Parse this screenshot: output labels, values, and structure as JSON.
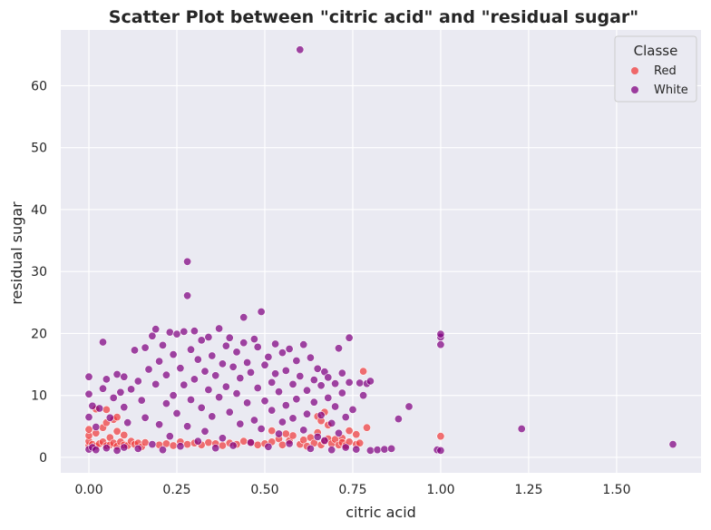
{
  "chart_data": {
    "type": "scatter",
    "title": "Scatter Plot between \"citric acid\" and \"residual sugar\"",
    "xlabel": "citric acid",
    "ylabel": "residual sugar",
    "xlim": [
      -0.08,
      1.74
    ],
    "ylim": [
      -2.5,
      69
    ],
    "xticks": [
      0.0,
      0.25,
      0.5,
      0.75,
      1.0,
      1.25,
      1.5
    ],
    "xtick_labels": [
      "0.00",
      "0.25",
      "0.50",
      "0.75",
      "1.00",
      "1.25",
      "1.50"
    ],
    "yticks": [
      0,
      10,
      20,
      30,
      40,
      50,
      60
    ],
    "ytick_labels": [
      "0",
      "10",
      "20",
      "30",
      "40",
      "50",
      "60"
    ],
    "grid": true,
    "legend": {
      "title": "Classe",
      "placement": "top-right"
    },
    "series": [
      {
        "name": "Red",
        "color": "#f03b3b",
        "points": [
          [
            0.0,
            1.9
          ],
          [
            0.0,
            2.6
          ],
          [
            0.0,
            3.5
          ],
          [
            0.0,
            4.5
          ],
          [
            0.01,
            2.1
          ],
          [
            0.02,
            1.8
          ],
          [
            0.02,
            3.9
          ],
          [
            0.03,
            2.2
          ],
          [
            0.04,
            2.5
          ],
          [
            0.04,
            4.8
          ],
          [
            0.05,
            1.9
          ],
          [
            0.05,
            5.6
          ],
          [
            0.06,
            2.0
          ],
          [
            0.06,
            3.2
          ],
          [
            0.07,
            2.3
          ],
          [
            0.07,
            6.1
          ],
          [
            0.08,
            1.8
          ],
          [
            0.08,
            4.2
          ],
          [
            0.09,
            2.5
          ],
          [
            0.1,
            2.0
          ],
          [
            0.1,
            3.6
          ],
          [
            0.11,
            1.9
          ],
          [
            0.12,
            2.6
          ],
          [
            0.13,
            2.1
          ],
          [
            0.14,
            2.3
          ],
          [
            0.15,
            1.7
          ],
          [
            0.16,
            2.4
          ],
          [
            0.02,
            7.8
          ],
          [
            0.05,
            7.7
          ],
          [
            0.08,
            6.5
          ],
          [
            0.2,
            2.0
          ],
          [
            0.22,
            2.2
          ],
          [
            0.24,
            1.9
          ],
          [
            0.26,
            2.5
          ],
          [
            0.28,
            2.1
          ],
          [
            0.3,
            2.3
          ],
          [
            0.32,
            2.0
          ],
          [
            0.34,
            2.4
          ],
          [
            0.36,
            2.2
          ],
          [
            0.38,
            1.9
          ],
          [
            0.4,
            2.3
          ],
          [
            0.42,
            2.1
          ],
          [
            0.44,
            2.6
          ],
          [
            0.46,
            2.4
          ],
          [
            0.48,
            2.0
          ],
          [
            0.5,
            2.2
          ],
          [
            0.52,
            2.5
          ],
          [
            0.54,
            3.0
          ],
          [
            0.55,
            2.0
          ],
          [
            0.57,
            2.7
          ],
          [
            0.58,
            3.5
          ],
          [
            0.6,
            2.1
          ],
          [
            0.61,
            2.8
          ],
          [
            0.62,
            1.8
          ],
          [
            0.63,
            3.2
          ],
          [
            0.64,
            2.3
          ],
          [
            0.65,
            4.0
          ],
          [
            0.65,
            6.6
          ],
          [
            0.66,
            2.0
          ],
          [
            0.66,
            5.9
          ],
          [
            0.67,
            2.6
          ],
          [
            0.67,
            7.3
          ],
          [
            0.68,
            3.0
          ],
          [
            0.68,
            5.2
          ],
          [
            0.69,
            2.2
          ],
          [
            0.7,
            2.9
          ],
          [
            0.71,
            2.0
          ],
          [
            0.72,
            3.1
          ],
          [
            0.72,
            2.4
          ],
          [
            0.73,
            1.9
          ],
          [
            0.74,
            2.5
          ],
          [
            0.74,
            4.3
          ],
          [
            0.76,
            2.1
          ],
          [
            0.76,
            3.7
          ],
          [
            0.77,
            2.3
          ],
          [
            0.78,
            13.9
          ],
          [
            0.79,
            4.8
          ],
          [
            0.52,
            4.3
          ],
          [
            0.56,
            3.8
          ],
          [
            1.0,
            3.4
          ]
        ]
      },
      {
        "name": "White",
        "color": "#800080",
        "points": [
          [
            0.0,
            1.3
          ],
          [
            0.0,
            6.5
          ],
          [
            0.0,
            10.2
          ],
          [
            0.0,
            13.0
          ],
          [
            0.01,
            1.6
          ],
          [
            0.01,
            8.3
          ],
          [
            0.02,
            1.2
          ],
          [
            0.02,
            4.9
          ],
          [
            0.03,
            7.9
          ],
          [
            0.04,
            11.1
          ],
          [
            0.04,
            18.6
          ],
          [
            0.05,
            1.5
          ],
          [
            0.05,
            12.6
          ],
          [
            0.06,
            6.4
          ],
          [
            0.07,
            9.6
          ],
          [
            0.08,
            1.1
          ],
          [
            0.08,
            13.4
          ],
          [
            0.09,
            10.5
          ],
          [
            0.1,
            1.6
          ],
          [
            0.1,
            8.1
          ],
          [
            0.1,
            13.0
          ],
          [
            0.11,
            5.6
          ],
          [
            0.12,
            11.0
          ],
          [
            0.13,
            17.3
          ],
          [
            0.14,
            1.4
          ],
          [
            0.14,
            12.3
          ],
          [
            0.15,
            9.2
          ],
          [
            0.16,
            17.7
          ],
          [
            0.16,
            6.4
          ],
          [
            0.17,
            14.2
          ],
          [
            0.18,
            19.6
          ],
          [
            0.18,
            2.1
          ],
          [
            0.19,
            11.8
          ],
          [
            0.19,
            20.7
          ],
          [
            0.2,
            5.3
          ],
          [
            0.2,
            15.5
          ],
          [
            0.21,
            1.2
          ],
          [
            0.21,
            18.1
          ],
          [
            0.22,
            8.7
          ],
          [
            0.22,
            13.3
          ],
          [
            0.23,
            20.2
          ],
          [
            0.23,
            3.4
          ],
          [
            0.24,
            16.6
          ],
          [
            0.24,
            10.0
          ],
          [
            0.25,
            7.1
          ],
          [
            0.25,
            19.9
          ],
          [
            0.26,
            1.8
          ],
          [
            0.26,
            14.4
          ],
          [
            0.27,
            11.7
          ],
          [
            0.27,
            20.3
          ],
          [
            0.28,
            31.6
          ],
          [
            0.28,
            26.1
          ],
          [
            0.28,
            5.0
          ],
          [
            0.29,
            17.4
          ],
          [
            0.29,
            9.3
          ],
          [
            0.3,
            12.6
          ],
          [
            0.3,
            20.4
          ],
          [
            0.31,
            2.6
          ],
          [
            0.31,
            15.8
          ],
          [
            0.32,
            8.0
          ],
          [
            0.32,
            18.9
          ],
          [
            0.33,
            13.9
          ],
          [
            0.33,
            4.2
          ],
          [
            0.34,
            19.4
          ],
          [
            0.34,
            10.9
          ],
          [
            0.35,
            6.6
          ],
          [
            0.35,
            16.4
          ],
          [
            0.36,
            1.5
          ],
          [
            0.36,
            13.2
          ],
          [
            0.37,
            20.8
          ],
          [
            0.37,
            9.7
          ],
          [
            0.38,
            15.1
          ],
          [
            0.38,
            3.1
          ],
          [
            0.39,
            18.0
          ],
          [
            0.39,
            11.4
          ],
          [
            0.4,
            7.3
          ],
          [
            0.4,
            19.3
          ],
          [
            0.41,
            14.6
          ],
          [
            0.41,
            1.9
          ],
          [
            0.42,
            10.3
          ],
          [
            0.42,
            17.0
          ],
          [
            0.43,
            5.4
          ],
          [
            0.43,
            12.8
          ],
          [
            0.44,
            22.6
          ],
          [
            0.44,
            18.5
          ],
          [
            0.45,
            8.8
          ],
          [
            0.45,
            15.3
          ],
          [
            0.46,
            2.4
          ],
          [
            0.46,
            13.7
          ],
          [
            0.47,
            19.1
          ],
          [
            0.47,
            6.0
          ],
          [
            0.48,
            11.2
          ],
          [
            0.48,
            17.8
          ],
          [
            0.49,
            23.5
          ],
          [
            0.49,
            4.6
          ],
          [
            0.5,
            14.9
          ],
          [
            0.5,
            9.1
          ],
          [
            0.51,
            16.2
          ],
          [
            0.51,
            1.7
          ],
          [
            0.52,
            12.1
          ],
          [
            0.52,
            7.6
          ],
          [
            0.53,
            18.3
          ],
          [
            0.53,
            13.5
          ],
          [
            0.54,
            3.8
          ],
          [
            0.54,
            10.6
          ],
          [
            0.55,
            16.9
          ],
          [
            0.55,
            5.7
          ],
          [
            0.56,
            14.0
          ],
          [
            0.56,
            8.4
          ],
          [
            0.57,
            17.5
          ],
          [
            0.57,
            2.2
          ],
          [
            0.58,
            11.8
          ],
          [
            0.58,
            6.3
          ],
          [
            0.59,
            15.6
          ],
          [
            0.59,
            9.4
          ],
          [
            0.6,
            65.8
          ],
          [
            0.6,
            13.1
          ],
          [
            0.61,
            4.4
          ],
          [
            0.61,
            18.2
          ],
          [
            0.62,
            10.8
          ],
          [
            0.62,
            7.0
          ],
          [
            0.63,
            16.1
          ],
          [
            0.63,
            1.4
          ],
          [
            0.64,
            12.5
          ],
          [
            0.64,
            8.9
          ],
          [
            0.65,
            14.3
          ],
          [
            0.65,
            3.3
          ],
          [
            0.66,
            11.6
          ],
          [
            0.66,
            6.8
          ],
          [
            0.67,
            13.8
          ],
          [
            0.67,
            2.7
          ],
          [
            0.68,
            9.6
          ],
          [
            0.68,
            12.9
          ],
          [
            0.69,
            5.5
          ],
          [
            0.69,
            1.2
          ],
          [
            0.7,
            11.9
          ],
          [
            0.7,
            8.2
          ],
          [
            0.71,
            17.6
          ],
          [
            0.71,
            3.9
          ],
          [
            0.72,
            13.6
          ],
          [
            0.72,
            10.4
          ],
          [
            0.73,
            6.5
          ],
          [
            0.73,
            1.6
          ],
          [
            0.74,
            19.3
          ],
          [
            0.74,
            12.1
          ],
          [
            0.75,
            7.7
          ],
          [
            0.76,
            1.3
          ],
          [
            0.77,
            12.0
          ],
          [
            0.78,
            10.0
          ],
          [
            0.79,
            11.9
          ],
          [
            0.8,
            12.3
          ],
          [
            0.8,
            1.1
          ],
          [
            0.82,
            1.2
          ],
          [
            0.84,
            1.3
          ],
          [
            0.86,
            1.4
          ],
          [
            0.88,
            6.2
          ],
          [
            0.91,
            8.2
          ],
          [
            0.99,
            1.2
          ],
          [
            1.0,
            1.1
          ],
          [
            1.0,
            18.2
          ],
          [
            1.0,
            19.4
          ],
          [
            1.0,
            19.9
          ],
          [
            1.23,
            4.6
          ],
          [
            1.66,
            2.1
          ]
        ]
      }
    ]
  }
}
